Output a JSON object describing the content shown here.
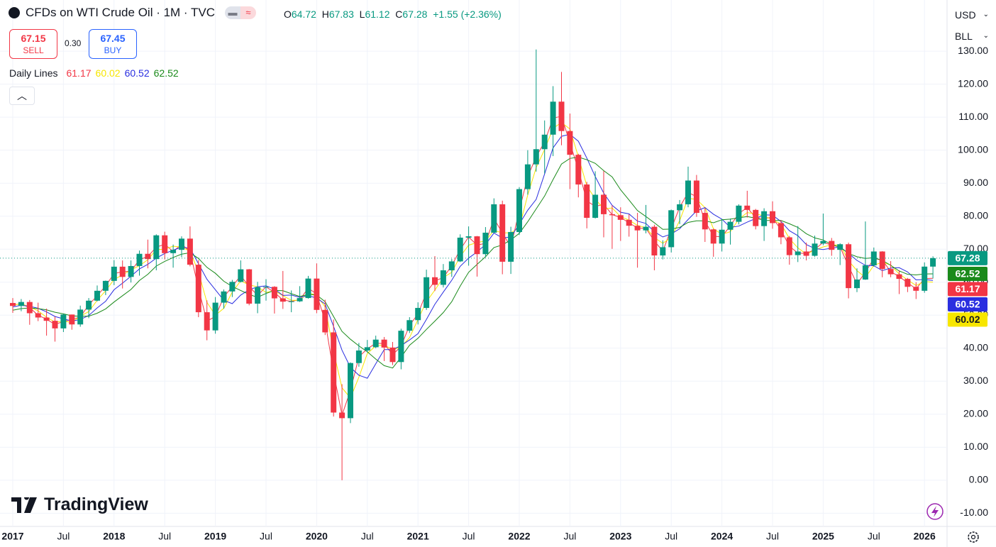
{
  "header": {
    "title": "CFDs on WTI Crude Oil · 1M · TVC",
    "open_label": "O",
    "high_label": "H",
    "low_label": "L",
    "close_label": "C",
    "change": "+1.55 (+2.36%)",
    "currency": "USD",
    "unit": "BLL"
  },
  "trade": {
    "sell_price": 67.15,
    "sell_label": "SELL",
    "spread": "0.30",
    "buy_price": 67.45,
    "buy_label": "BUY"
  },
  "logo": "TradingView",
  "chart_data": {
    "type": "candlestick",
    "x": [
      "2017-01",
      "2017-02",
      "2017-03",
      "2017-04",
      "2017-05",
      "2017-06",
      "2017-07",
      "2017-08",
      "2017-09",
      "2017-10",
      "2017-11",
      "2017-12",
      "2018-01",
      "2018-02",
      "2018-03",
      "2018-04",
      "2018-05",
      "2018-06",
      "2018-07",
      "2018-08",
      "2018-09",
      "2018-10",
      "2018-11",
      "2018-12",
      "2019-01",
      "2019-02",
      "2019-03",
      "2019-04",
      "2019-05",
      "2019-06",
      "2019-07",
      "2019-08",
      "2019-09",
      "2019-10",
      "2019-11",
      "2019-12",
      "2020-01",
      "2020-02",
      "2020-03",
      "2020-04",
      "2020-05",
      "2020-06",
      "2020-07",
      "2020-08",
      "2020-09",
      "2020-10",
      "2020-11",
      "2020-12",
      "2021-01",
      "2021-02",
      "2021-03",
      "2021-04",
      "2021-05",
      "2021-06",
      "2021-07",
      "2021-08",
      "2021-09",
      "2021-10",
      "2021-11",
      "2021-12",
      "2022-01",
      "2022-02",
      "2022-03",
      "2022-04",
      "2022-05",
      "2022-06",
      "2022-07",
      "2022-08",
      "2022-09",
      "2022-10",
      "2022-11",
      "2022-12",
      "2023-01",
      "2023-02",
      "2023-03",
      "2023-04",
      "2023-05",
      "2023-06",
      "2023-07",
      "2023-08",
      "2023-09",
      "2023-10",
      "2023-11",
      "2023-12",
      "2024-01",
      "2024-02",
      "2024-03",
      "2024-04",
      "2024-05",
      "2024-06",
      "2024-07",
      "2024-08",
      "2024-09",
      "2024-10",
      "2024-11",
      "2024-12",
      "2025-01",
      "2025-02",
      "2025-03",
      "2025-04",
      "2025-05",
      "2025-06",
      "2025-07",
      "2025-08",
      "2025-09",
      "2025-10",
      "2025-11",
      "2025-12",
      "2026-01",
      "2026-02"
    ],
    "open": [
      53.7,
      52.8,
      54.0,
      50.6,
      49.3,
      48.3,
      46.0,
      50.2,
      47.2,
      51.7,
      54.4,
      57.4,
      60.4,
      64.7,
      61.6,
      64.9,
      68.6,
      67.0,
      74.2,
      68.8,
      69.8,
      73.2,
      65.3,
      50.9,
      45.4,
      53.8,
      57.2,
      60.1,
      63.9,
      53.5,
      58.5,
      58.6,
      55.1,
      54.1,
      54.2,
      55.2,
      61.1,
      51.6,
      44.8,
      20.5,
      18.8,
      35.5,
      39.3,
      40.3,
      42.6,
      40.2,
      35.8,
      45.3,
      48.5,
      52.2,
      61.5,
      59.2,
      63.6,
      66.3,
      73.5,
      73.9,
      68.5,
      75.0,
      83.6,
      66.2,
      75.2,
      88.2,
      95.7,
      100.3,
      104.7,
      114.7,
      105.8,
      98.6,
      89.6,
      79.5,
      86.5,
      80.6,
      80.3,
      78.9,
      77.1,
      75.7,
      76.8,
      68.1,
      70.6,
      81.8,
      83.6,
      90.8,
      81.0,
      76.0,
      71.7,
      75.9,
      78.3,
      83.2,
      81.9,
      77.0,
      81.5,
      77.9,
      73.6,
      68.2,
      69.3,
      68.0,
      71.7,
      72.5,
      69.8,
      71.5,
      58.2,
      60.8,
      65.1,
      69.3,
      64.0,
      62.4,
      61.0,
      58.6,
      57.4,
      64.72
    ],
    "high": [
      55.2,
      54.9,
      54.6,
      53.8,
      52.0,
      49.6,
      50.4,
      50.2,
      52.9,
      55.2,
      59.0,
      60.5,
      66.7,
      66.6,
      66.6,
      69.6,
      72.9,
      74.5,
      75.3,
      71.4,
      73.9,
      76.9,
      66.7,
      54.5,
      55.5,
      57.8,
      60.7,
      66.6,
      64.0,
      60.1,
      60.9,
      58.8,
      63.4,
      57.5,
      58.8,
      61.9,
      65.7,
      54.7,
      48.7,
      29.1,
      35.7,
      41.6,
      42.5,
      43.8,
      43.4,
      41.9,
      45.9,
      49.4,
      53.9,
      63.8,
      67.9,
      65.5,
      67.0,
      74.5,
      76.9,
      74.0,
      76.7,
      85.4,
      84.7,
      76.8,
      88.8,
      100.0,
      130.5,
      109.0,
      119.4,
      123.7,
      111.1,
      98.9,
      90.4,
      93.6,
      93.7,
      83.3,
      82.7,
      80.6,
      81.0,
      83.4,
      77.4,
      72.7,
      82.0,
      84.9,
      95.0,
      92.5,
      82.5,
      76.2,
      79.2,
      79.3,
      83.6,
      87.7,
      82.2,
      82.4,
      84.5,
      78.8,
      74.0,
      77.0,
      72.0,
      74.1,
      80.8,
      73.4,
      71.8,
      72.0,
      64.2,
      78.4,
      70.5,
      69.4,
      66.4,
      63.6,
      61.3,
      60.0,
      66.0,
      67.83
    ],
    "low": [
      50.7,
      51.2,
      47.1,
      48.2,
      43.8,
      42.0,
      44.9,
      45.6,
      46.5,
      49.1,
      54.2,
      56.1,
      59.1,
      58.1,
      59.9,
      62.0,
      64.2,
      63.6,
      66.9,
      64.4,
      67.6,
      64.8,
      49.4,
      42.4,
      44.4,
      52.0,
      55.5,
      59.9,
      53.0,
      50.6,
      54.4,
      50.5,
      51.9,
      50.9,
      54.0,
      55.0,
      50.6,
      44.0,
      19.3,
      0.0,
      17.3,
      34.4,
      38.7,
      40.0,
      36.1,
      34.9,
      33.6,
      44.6,
      47.2,
      51.6,
      57.3,
      58.4,
      61.6,
      66.1,
      65.0,
      61.7,
      67.6,
      74.9,
      62.4,
      62.5,
      74.3,
      86.5,
      93.5,
      92.9,
      98.2,
      101.5,
      88.2,
      85.7,
      76.3,
      79.3,
      73.6,
      70.1,
      72.5,
      73.8,
      64.4,
      74.8,
      63.6,
      66.9,
      69.0,
      77.6,
      82.7,
      79.8,
      72.2,
      67.7,
      69.3,
      71.4,
      77.5,
      79.6,
      76.0,
      72.5,
      76.2,
      71.5,
      65.3,
      66.1,
      66.6,
      67.7,
      71.2,
      68.0,
      65.2,
      55.1,
      57.0,
      60.7,
      64.7,
      61.5,
      61.5,
      56.4,
      57.0,
      54.9,
      56.8,
      61.12
    ],
    "close": [
      52.8,
      54.0,
      50.6,
      49.3,
      48.3,
      46.0,
      50.2,
      47.2,
      51.7,
      54.4,
      57.4,
      60.4,
      64.7,
      61.6,
      64.9,
      68.6,
      67.0,
      74.2,
      68.8,
      69.8,
      73.2,
      65.3,
      50.9,
      45.4,
      53.8,
      57.2,
      60.1,
      63.9,
      53.5,
      58.5,
      58.6,
      55.1,
      54.1,
      54.2,
      55.2,
      61.1,
      51.6,
      44.8,
      20.5,
      18.8,
      35.5,
      39.3,
      40.3,
      42.6,
      40.2,
      35.8,
      45.3,
      48.5,
      52.2,
      61.5,
      59.2,
      63.6,
      66.3,
      73.5,
      73.9,
      68.5,
      75.0,
      83.6,
      66.2,
      75.2,
      88.2,
      95.7,
      100.3,
      104.7,
      114.7,
      105.8,
      98.6,
      89.6,
      79.5,
      86.5,
      80.6,
      80.3,
      78.9,
      77.1,
      75.7,
      76.8,
      68.1,
      70.6,
      81.8,
      83.6,
      90.8,
      81.0,
      76.0,
      71.7,
      75.9,
      78.3,
      83.2,
      81.9,
      77.0,
      81.5,
      77.9,
      73.6,
      68.2,
      69.3,
      68.0,
      71.7,
      72.5,
      69.8,
      71.5,
      58.2,
      60.8,
      65.1,
      69.3,
      64.0,
      62.4,
      61.0,
      58.6,
      57.4,
      64.72,
      67.28
    ],
    "up_color": "#089981",
    "down_color": "#f23645",
    "indicator": {
      "name": "Daily Lines",
      "lines": [
        {
          "color": "#f23645",
          "values": [
            53.2,
            53.4,
            52.3,
            50.0,
            48.8,
            47.2,
            48.1,
            48.7,
            49.5,
            53.1,
            55.9,
            58.9,
            62.6,
            63.2,
            63.3,
            66.8,
            67.8,
            70.6,
            71.5,
            69.3,
            71.5,
            69.3,
            58.1,
            48.2,
            49.6,
            55.5,
            58.7,
            62.0,
            58.7,
            56.0,
            58.6,
            56.9,
            54.6,
            54.2,
            54.7,
            58.2,
            56.4,
            48.2,
            32.7,
            19.7,
            27.2,
            37.4,
            39.8,
            41.5,
            41.4,
            38.0,
            40.6,
            46.9,
            50.4,
            56.9,
            60.4,
            61.4,
            65.0,
            69.9,
            73.7,
            71.2,
            71.8,
            79.3,
            74.9,
            70.7,
            81.7,
            92.0,
            98.0,
            102.5,
            109.7,
            110.3,
            102.2,
            94.1,
            84.6,
            83.0,
            83.6,
            80.5,
            79.6,
            78.0,
            76.4,
            76.3,
            72.5,
            69.4,
            76.2,
            82.7,
            87.2,
            85.9,
            78.5,
            73.9,
            73.8,
            77.1,
            80.8,
            82.6,
            79.5,
            79.3,
            79.7,
            75.8,
            70.9,
            68.8,
            68.7,
            69.9,
            72.1,
            71.2,
            70.7,
            64.9,
            59.5,
            63.0,
            67.2,
            66.7,
            63.2,
            61.7,
            59.8,
            58.0,
            61.1,
            61.17
          ]
        },
        {
          "color": "#f7e600",
          "values": [
            53.0,
            53.5,
            52.5,
            51.3,
            49.4,
            47.9,
            48.2,
            47.8,
            49.7,
            51.1,
            54.5,
            57.4,
            60.8,
            62.2,
            63.7,
            65.0,
            66.8,
            69.9,
            70.0,
            70.9,
            70.6,
            69.4,
            63.1,
            53.9,
            50.0,
            52.1,
            57.0,
            60.4,
            59.2,
            58.6,
            56.9,
            57.4,
            55.9,
            54.5,
            54.5,
            56.8,
            56.0,
            52.5,
            39.0,
            28.0,
            24.9,
            31.2,
            38.4,
            40.7,
            41.0,
            39.5,
            40.4,
            43.2,
            48.7,
            54.1,
            57.6,
            61.4,
            63.0,
            67.8,
            71.2,
            72.0,
            72.5,
            75.7,
            74.9,
            75.0,
            76.5,
            86.4,
            94.7,
            100.2,
            106.6,
            108.4,
            106.4,
            98.0,
            89.2,
            85.2,
            82.2,
            82.5,
            79.9,
            78.8,
            77.2,
            76.5,
            73.5,
            71.8,
            73.5,
            78.7,
            85.4,
            85.1,
            82.6,
            76.2,
            74.5,
            75.3,
            79.1,
            81.1,
            80.7,
            80.1,
            78.8,
            77.7,
            73.2,
            70.4,
            68.5,
            69.7,
            70.7,
            71.3,
            71.3,
            66.5,
            63.5,
            61.4,
            65.1,
            66.1,
            65.2,
            62.5,
            60.7,
            59.0,
            60.2,
            60.02
          ]
        },
        {
          "color": "#2a2ee0",
          "values": [
            52.5,
            53.0,
            52.7,
            52.1,
            51.0,
            49.6,
            48.9,
            48.2,
            48.7,
            49.9,
            52.2,
            54.2,
            57.7,
            59.7,
            61.8,
            64.0,
            65.4,
            67.3,
            68.7,
            69.7,
            70.6,
            70.3,
            65.6,
            60.9,
            57.7,
            54.5,
            53.5,
            56.1,
            57.7,
            58.6,
            58.9,
            57.9,
            56.0,
            56.1,
            55.4,
            55.9,
            55.2,
            53.4,
            46.6,
            39.4,
            34.2,
            31.8,
            30.9,
            35.3,
            39.6,
            39.6,
            40.8,
            42.5,
            44.4,
            48.7,
            53.3,
            57.0,
            60.6,
            64.8,
            67.3,
            69.2,
            71.4,
            74.9,
            73.4,
            73.7,
            77.6,
            81.8,
            85.1,
            92.8,
            100.7,
            104.2,
            104.8,
            102.7,
            97.6,
            92.0,
            87.0,
            83.3,
            81.2,
            80.7,
            78.5,
            77.8,
            75.3,
            73.7,
            74.6,
            76.2,
            79.0,
            81.6,
            82.6,
            80.6,
            79.1,
            76.6,
            77.0,
            78.2,
            79.3,
            80.4,
            80.3,
            78.4,
            75.6,
            74.1,
            71.4,
            70.2,
            69.9,
            70.3,
            70.7,
            68.7,
            66.6,
            65.1,
            65.0,
            63.5,
            64.3,
            64.4,
            63.1,
            60.7,
            60.8,
            60.52
          ]
        },
        {
          "color": "#1a8a1a",
          "values": [
            51.5,
            52.0,
            52.2,
            52.0,
            51.6,
            50.9,
            50.4,
            49.8,
            49.7,
            49.7,
            50.6,
            51.9,
            54.0,
            55.9,
            57.8,
            60.5,
            62.4,
            64.9,
            66.3,
            67.5,
            68.5,
            68.9,
            67.2,
            64.5,
            62.7,
            60.3,
            58.7,
            57.5,
            56.3,
            55.4,
            56.6,
            57.5,
            57.4,
            56.5,
            55.7,
            56.3,
            56.1,
            54.1,
            49.6,
            45.1,
            42.7,
            40.7,
            38.9,
            36.7,
            34.7,
            34.0,
            37.3,
            40.9,
            43.0,
            45.7,
            48.2,
            50.8,
            54.1,
            58.8,
            63.0,
            65.4,
            67.7,
            70.5,
            71.3,
            72.8,
            74.8,
            78.3,
            82.2,
            86.1,
            91.1,
            95.8,
            97.5,
            97.9,
            97.1,
            96.0,
            93.8,
            91.9,
            88.0,
            84.9,
            81.7,
            79.9,
            78.0,
            76.0,
            76.1,
            76.6,
            78.1,
            78.6,
            78.6,
            78.0,
            78.9,
            79.1,
            79.5,
            79.9,
            79.4,
            78.7,
            78.7,
            78.7,
            77.7,
            76.6,
            74.7,
            73.4,
            72.8,
            71.4,
            70.6,
            68.7,
            67.7,
            67.2,
            67.4,
            66.6,
            65.1,
            63.4,
            62.4,
            62.2,
            62.5,
            62.52
          ]
        }
      ]
    },
    "ylim": [
      -14,
      145.5
    ],
    "yticks": [
      {
        "value": -10,
        "label": "-10.00"
      },
      {
        "value": 0,
        "label": "0.00"
      },
      {
        "value": 10,
        "label": "10.00"
      },
      {
        "value": 20,
        "label": "20.00"
      },
      {
        "value": 30,
        "label": "30.00"
      },
      {
        "value": 40,
        "label": "40.00"
      },
      {
        "value": 50,
        "label": "50.00"
      },
      {
        "value": 60,
        "label": "60.00"
      },
      {
        "value": 70,
        "label": "70.00"
      },
      {
        "value": 80,
        "label": "80.00"
      },
      {
        "value": 90,
        "label": "90.00"
      },
      {
        "value": 100,
        "label": "100.00"
      },
      {
        "value": 110,
        "label": "110.00"
      },
      {
        "value": 120,
        "label": "120.00"
      },
      {
        "value": 130,
        "label": "130.00"
      }
    ],
    "xticks": [
      {
        "value": "2017-01",
        "label": "2017"
      },
      {
        "value": "2017-07",
        "label": "Jul"
      },
      {
        "value": "2018-01",
        "label": "2018"
      },
      {
        "value": "2018-07",
        "label": "Jul"
      },
      {
        "value": "2019-01",
        "label": "2019"
      },
      {
        "value": "2019-07",
        "label": "Jul"
      },
      {
        "value": "2020-01",
        "label": "2020"
      },
      {
        "value": "2020-07",
        "label": "Jul"
      },
      {
        "value": "2021-01",
        "label": "2021"
      },
      {
        "value": "2021-07",
        "label": "Jul"
      },
      {
        "value": "2022-01",
        "label": "2022"
      },
      {
        "value": "2022-07",
        "label": "Jul"
      },
      {
        "value": "2023-01",
        "label": "2023"
      },
      {
        "value": "2023-07",
        "label": "Jul"
      },
      {
        "value": "2024-01",
        "label": "2024"
      },
      {
        "value": "2024-07",
        "label": "Jul"
      },
      {
        "value": "2025-01",
        "label": "2025"
      },
      {
        "value": "2025-07",
        "label": "Jul"
      },
      {
        "value": "2026-01",
        "label": "2026"
      }
    ],
    "grid": true
  }
}
